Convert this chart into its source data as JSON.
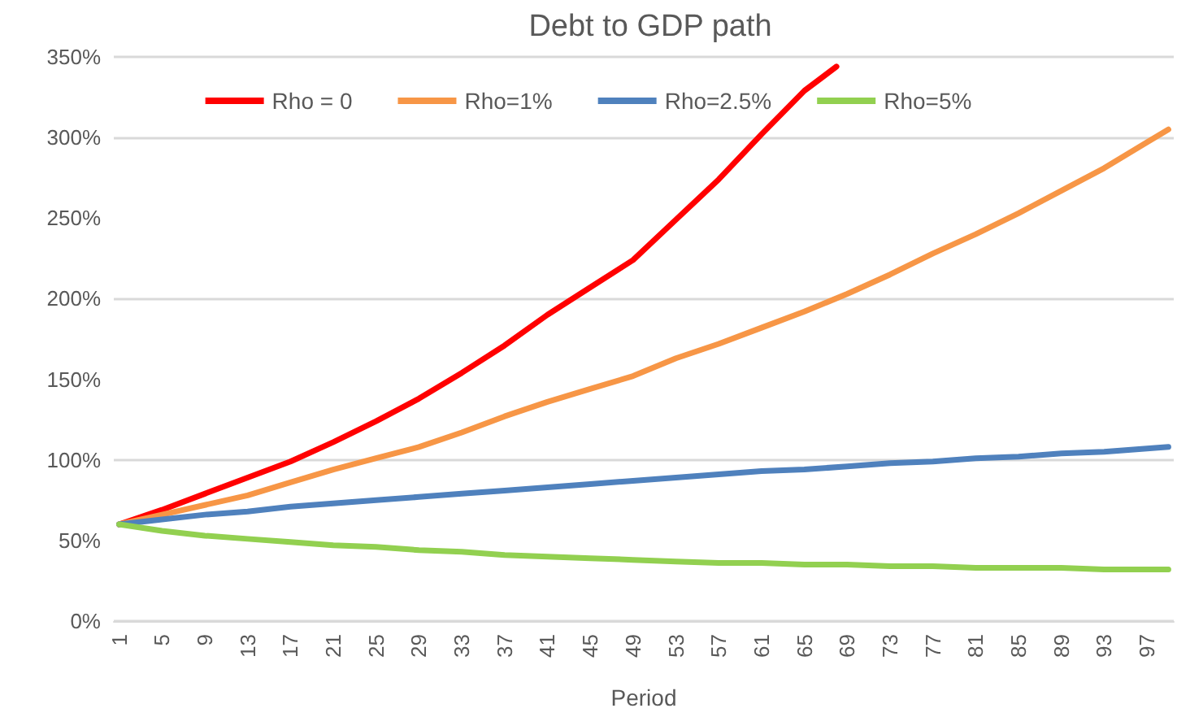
{
  "chart_data": {
    "type": "line",
    "title": "Debt to GDP path",
    "xlabel": "Period",
    "xlim": [
      0.5,
      99.5
    ],
    "xticks": [
      1,
      5,
      9,
      13,
      17,
      21,
      25,
      29,
      33,
      37,
      41,
      45,
      49,
      53,
      57,
      61,
      65,
      69,
      73,
      77,
      81,
      85,
      89,
      93,
      97
    ],
    "ylim": [
      0,
      350
    ],
    "yticks": [
      {
        "value": 0,
        "label": "0%"
      },
      {
        "value": 50,
        "label": "50%"
      },
      {
        "value": 100,
        "label": "100%"
      },
      {
        "value": 150,
        "label": "150%"
      },
      {
        "value": 200,
        "label": "200%"
      },
      {
        "value": 250,
        "label": "250%"
      },
      {
        "value": 300,
        "label": "300%"
      },
      {
        "value": 350,
        "label": "350%"
      }
    ],
    "grid": "y",
    "legend": "top",
    "marker": "none",
    "line_style": "solid",
    "series": [
      {
        "name": "Rho = 0",
        "color": "#ff0000",
        "x": [
          1,
          5,
          9,
          13,
          17,
          21,
          25,
          29,
          33,
          37,
          41,
          45,
          49,
          53,
          57,
          61,
          65,
          68
        ],
        "values": [
          60,
          69,
          79,
          89,
          99,
          111,
          124,
          138,
          154,
          171,
          190,
          207,
          224,
          249,
          274,
          302,
          329,
          344
        ]
      },
      {
        "name": "Rho=1%",
        "color": "#f79646",
        "x": [
          1,
          5,
          9,
          13,
          17,
          21,
          25,
          29,
          33,
          37,
          41,
          45,
          49,
          53,
          57,
          61,
          65,
          69,
          73,
          77,
          81,
          85,
          89,
          93,
          97,
          99
        ],
        "values": [
          60,
          66,
          72,
          78,
          86,
          94,
          101,
          108,
          117,
          127,
          136,
          144,
          152,
          163,
          172,
          182,
          192,
          203,
          215,
          228,
          240,
          253,
          267,
          281,
          297,
          305
        ]
      },
      {
        "name": "Rho=2.5%",
        "color": "#4f81bd",
        "x": [
          1,
          5,
          9,
          13,
          17,
          21,
          25,
          29,
          33,
          37,
          41,
          45,
          49,
          53,
          57,
          61,
          65,
          69,
          73,
          77,
          81,
          85,
          89,
          93,
          97,
          99
        ],
        "values": [
          60,
          63,
          66,
          68,
          71,
          73,
          75,
          77,
          79,
          81,
          83,
          85,
          87,
          89,
          91,
          93,
          94,
          96,
          98,
          99,
          101,
          102,
          104,
          105,
          107,
          108
        ]
      },
      {
        "name": "Rho=5%",
        "color": "#92d050",
        "x": [
          1,
          5,
          9,
          13,
          17,
          21,
          25,
          29,
          33,
          37,
          41,
          45,
          49,
          53,
          57,
          61,
          65,
          69,
          73,
          77,
          81,
          85,
          89,
          93,
          97,
          99
        ],
        "values": [
          60,
          56,
          53,
          51,
          49,
          47,
          46,
          44,
          43,
          41,
          40,
          39,
          38,
          37,
          36,
          36,
          35,
          35,
          34,
          34,
          33,
          33,
          33,
          32,
          32,
          32
        ]
      }
    ]
  }
}
